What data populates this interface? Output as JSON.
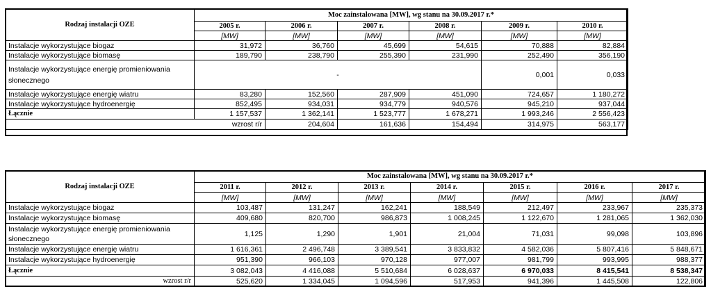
{
  "table1": {
    "header_group": "Moc zainstalowana [MW], wg stanu na 30.09.2017 r.*",
    "row_header": "Rodzaj instalacji OZE",
    "years": [
      "2005 r.",
      "2006 r.",
      "2007 r.",
      "2008 r.",
      "2009 r.",
      "2010 r."
    ],
    "unit": "[MW]",
    "rows": [
      {
        "label": "Instalacje wykorzystujące biogaz",
        "values": [
          "31,972",
          "36,760",
          "45,699",
          "54,615",
          "70,888",
          "82,884"
        ]
      },
      {
        "label": "Instalacje wykorzystujące biomasę",
        "values": [
          "189,790",
          "238,790",
          "255,390",
          "231,990",
          "252,490",
          "356,190"
        ]
      },
      {
        "label": "Instalacje wykorzystujące energię promieniowania słonecznego",
        "dash": "-",
        "values": [
          "",
          "",
          "",
          "",
          "0,001",
          "0,033"
        ]
      },
      {
        "label": "Instalacje wykorzystujące energię wiatru",
        "values": [
          "83,280",
          "152,560",
          "287,909",
          "451,090",
          "724,657",
          "1 180,272"
        ]
      },
      {
        "label": "Instalacje wykorzystujące hydroenergię",
        "values": [
          "852,495",
          "934,031",
          "934,779",
          "940,576",
          "945,210",
          "937,044"
        ]
      }
    ],
    "total": {
      "label": "Łącznie",
      "values": [
        "1 157,537",
        "1 362,141",
        "1 523,777",
        "1 678,271",
        "1 993,246",
        "2 556,423"
      ]
    },
    "growth": {
      "label": "wzrost r/r",
      "values": [
        "204,604",
        "161,636",
        "154,494",
        "314,975",
        "563,177"
      ]
    }
  },
  "table2": {
    "header_group": "Moc zainstalowana [MW], wg stanu na 30.09.2017 r.*",
    "row_header": "Rodzaj instalacji OZE",
    "years": [
      "2011 r.",
      "2012 r.",
      "2013 r.",
      "2014 r.",
      "2015 r.",
      "2016 r.",
      "2017 r."
    ],
    "unit": "[MW]",
    "rows": [
      {
        "label": "Instalacje wykorzystujące biogaz",
        "values": [
          "103,487",
          "131,247",
          "162,241",
          "188,549",
          "212,497",
          "233,967",
          "235,373"
        ]
      },
      {
        "label": "Instalacje wykorzystujące biomasę",
        "values": [
          "409,680",
          "820,700",
          "986,873",
          "1 008,245",
          "1 122,670",
          "1 281,065",
          "1 362,030"
        ]
      },
      {
        "label": "Instalacje wykorzystujące energię promieniowania słonecznego",
        "values": [
          "1,125",
          "1,290",
          "1,901",
          "21,004",
          "71,031",
          "99,098",
          "103,896"
        ]
      },
      {
        "label": "Instalacje wykorzystujące energię wiatru",
        "values": [
          "1 616,361",
          "2 496,748",
          "3 389,541",
          "3 833,832",
          "4 582,036",
          "5 807,416",
          "5 848,671"
        ]
      },
      {
        "label": "Instalacje wykorzystujące hydroenergię",
        "values": [
          "951,390",
          "966,103",
          "970,128",
          "977,007",
          "981,799",
          "993,995",
          "988,377"
        ]
      }
    ],
    "total": {
      "label": "Łącznie",
      "values": [
        "3 082,043",
        "4 416,088",
        "5 510,684",
        "6 028,637",
        "6 970,033",
        "8 415,541",
        "8 538,347"
      ]
    },
    "growth": {
      "label": "wzrost r/r",
      "values": [
        "525,620",
        "1 334,045",
        "1 094,596",
        "517,953",
        "941,396",
        "1 445,508",
        "122,806"
      ]
    }
  }
}
